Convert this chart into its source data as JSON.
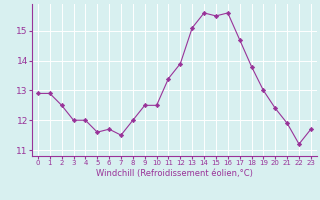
{
  "x": [
    0,
    1,
    2,
    3,
    4,
    5,
    6,
    7,
    8,
    9,
    10,
    11,
    12,
    13,
    14,
    15,
    16,
    17,
    18,
    19,
    20,
    21,
    22,
    23
  ],
  "y": [
    12.9,
    12.9,
    12.5,
    12.0,
    12.0,
    11.6,
    11.7,
    11.5,
    12.0,
    12.5,
    12.5,
    13.4,
    13.9,
    15.1,
    15.6,
    15.5,
    15.6,
    14.7,
    13.8,
    13.0,
    12.4,
    11.9,
    11.2,
    11.7
  ],
  "line_color": "#993399",
  "marker": "D",
  "marker_size": 2.2,
  "background_color": "#d8f0f0",
  "grid_color": "#b8d8d8",
  "xlabel": "Windchill (Refroidissement éolien,°C)",
  "xlabel_color": "#993399",
  "tick_color": "#993399",
  "xtick_labels": [
    "0",
    "1",
    "2",
    "3",
    "4",
    "5",
    "6",
    "7",
    "8",
    "9",
    "10",
    "11",
    "12",
    "13",
    "14",
    "15",
    "16",
    "17",
    "18",
    "19",
    "20",
    "21",
    "22",
    "23"
  ],
  "ylim": [
    10.8,
    15.9
  ],
  "yticks": [
    11,
    12,
    13,
    14,
    15
  ],
  "figsize": [
    3.2,
    2.0
  ],
  "dpi": 100
}
